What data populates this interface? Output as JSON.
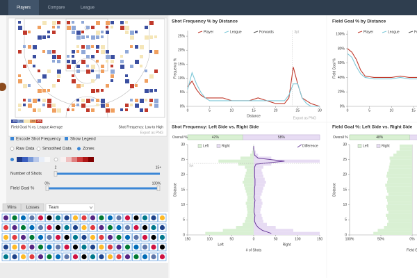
{
  "nav": {
    "tabs": [
      "Players",
      "Compare",
      "League"
    ]
  },
  "court": {
    "legend_labels": [
      "-6%",
      "-2%",
      "+2%",
      "+6%"
    ],
    "caption_left": "Field Goal % vs. League Average",
    "caption_right": "Shot Frequency: Low to High",
    "export": "Export as PNG"
  },
  "controls": {
    "checkboxes": [
      "Encode Shot Frequency",
      "Show Legend"
    ],
    "radios": [
      "Raw Data",
      "Smoothed Data",
      "Zones"
    ],
    "shots_slider": {
      "label": "Number of Shots",
      "min": 2,
      "max": "15+"
    },
    "fg_slider": {
      "label": "Field Goal %",
      "min": "0%",
      "max": "100%"
    }
  },
  "filters": {
    "tabs": [
      "Wins",
      "Losses"
    ],
    "select": "Team"
  },
  "chart_data": [
    {
      "type": "line",
      "title": "Shot Frequency % by Distance",
      "x_label": "Distance",
      "y_label": "Frequency %",
      "xlim": [
        0,
        30
      ],
      "xticks": [
        0,
        5,
        10,
        15,
        20,
        25,
        30
      ],
      "ylim": [
        0,
        27
      ],
      "yticks": [
        {
          "value": 0,
          "label": "0%"
        },
        {
          "value": 5,
          "label": "5%"
        },
        {
          "value": 10,
          "label": "10%"
        },
        {
          "value": 15,
          "label": "15%"
        },
        {
          "value": 20,
          "label": "20%"
        },
        {
          "value": 25,
          "label": "25%"
        }
      ],
      "legend": [
        {
          "name": "Player",
          "color": "#c0392b"
        },
        {
          "name": "League",
          "color": "#7ec8d8"
        },
        {
          "name": "Forwards",
          "color": "#555555"
        }
      ],
      "x": [
        0,
        1,
        2,
        3,
        4,
        5,
        6,
        8,
        10,
        12,
        14,
        16,
        18,
        20,
        22,
        23,
        24,
        25,
        26,
        27,
        28,
        30
      ],
      "series": [
        {
          "name": "Player",
          "color": "#c0392b",
          "values": [
            7,
            9,
            6,
            4,
            3,
            3,
            3,
            3,
            2,
            2,
            2,
            3,
            2,
            1,
            1,
            3,
            14,
            8,
            3,
            2,
            1,
            0
          ]
        },
        {
          "name": "League",
          "color": "#7ec8d8",
          "values": [
            6,
            12,
            8,
            5,
            3,
            2,
            2,
            2,
            2,
            2,
            2,
            2,
            2,
            2,
            2,
            4,
            8,
            8,
            3,
            1,
            0,
            0
          ]
        }
      ],
      "annotation": {
        "text": "3pt",
        "x": 23.75
      },
      "export": "Export as PNG"
    },
    {
      "type": "line",
      "title": "Field Goal % by Distance",
      "y_label": "Field Goal %",
      "xlim": [
        0,
        30
      ],
      "xticks": [
        0,
        5,
        10,
        15
      ],
      "ylim": [
        0,
        105
      ],
      "yticks": [
        {
          "value": 0,
          "label": "0%"
        },
        {
          "value": 20,
          "label": "20%"
        },
        {
          "value": 40,
          "label": "40%"
        },
        {
          "value": 60,
          "label": "60%"
        },
        {
          "value": 80,
          "label": "80%"
        },
        {
          "value": 100,
          "label": "100%"
        }
      ],
      "legend": [
        {
          "name": "Player",
          "color": "#c0392b"
        },
        {
          "name": "League",
          "color": "#7ec8d8"
        },
        {
          "name": "Forwards",
          "color": "#555555"
        }
      ],
      "x": [
        0,
        1,
        2,
        3,
        4,
        6,
        8,
        10,
        12,
        14,
        16
      ],
      "series": [
        {
          "name": "Player",
          "color": "#c0392b",
          "values": [
            80,
            75,
            65,
            50,
            42,
            40,
            40,
            40,
            42,
            40,
            40
          ]
        },
        {
          "name": "League",
          "color": "#7ec8d8",
          "values": [
            73,
            68,
            55,
            45,
            40,
            38,
            38,
            38,
            40,
            38,
            38
          ]
        }
      ]
    },
    {
      "type": "diverging_bar",
      "title": "Shot Frequency: Left Side vs. Right Side",
      "overall_label": "Overall %",
      "overall": {
        "values": [
          42,
          58
        ],
        "value_labels": [
          "42%",
          "58%"
        ]
      },
      "legend": [
        {
          "name": "Left",
          "color": "#d9f0d3"
        },
        {
          "name": "Right",
          "color": "#e7dcf3"
        },
        {
          "name": "Difference",
          "color": "#6a3d9a"
        }
      ],
      "y_label": "Distance",
      "ylim": [
        0,
        30
      ],
      "yticks": [
        0,
        5,
        10,
        15,
        20,
        25,
        30
      ],
      "left_xlim": [
        150,
        0
      ],
      "left_xticks": [
        150,
        100,
        50,
        0
      ],
      "right_xlim": [
        0,
        150
      ],
      "right_xticks": [
        50,
        100,
        150
      ],
      "side_labels": [
        "Left",
        "Right"
      ],
      "x_label": "# of Shots",
      "y": [
        0,
        1,
        2,
        3,
        4,
        5,
        6,
        7,
        8,
        9,
        10,
        11,
        12,
        13,
        14,
        15,
        16,
        17,
        18,
        19,
        20,
        21,
        22,
        23,
        24,
        25,
        26,
        27,
        28,
        29
      ],
      "left": [
        110,
        70,
        40,
        25,
        20,
        18,
        15,
        14,
        15,
        16,
        18,
        15,
        14,
        16,
        18,
        20,
        22,
        25,
        22,
        20,
        18,
        16,
        20,
        35,
        80,
        30,
        8,
        4,
        2,
        1
      ],
      "right": [
        150,
        90,
        50,
        30,
        22,
        20,
        18,
        15,
        16,
        18,
        20,
        18,
        15,
        18,
        20,
        22,
        25,
        28,
        25,
        22,
        20,
        18,
        22,
        40,
        150,
        40,
        10,
        5,
        2,
        1
      ],
      "difference": [
        40,
        20,
        10,
        5,
        2,
        2,
        3,
        1,
        1,
        2,
        2,
        3,
        1,
        2,
        2,
        2,
        3,
        3,
        3,
        2,
        2,
        2,
        2,
        5,
        70,
        10,
        2,
        1,
        0,
        0
      ],
      "annotation": {
        "text": "3pt",
        "y": 23.75
      }
    },
    {
      "type": "diverging_bar",
      "title": "Field Goal %: Left Side vs. Right Side",
      "overall_label": "Overall %",
      "overall": {
        "values": [
          48
        ],
        "value_labels": [
          "48%"
        ]
      },
      "legend": [
        {
          "name": "Left",
          "color": "#d9f0d3"
        },
        {
          "name": "Right",
          "color": "#e7dcf3"
        }
      ],
      "y_label": "Distance",
      "ylim": [
        0,
        30
      ],
      "yticks": [
        0,
        5,
        10,
        15,
        20,
        25,
        30
      ],
      "left_xlim": [
        100,
        0
      ],
      "left_xticks": [
        {
          "value": 100,
          "label": "100%"
        },
        {
          "value": 50,
          "label": "50%"
        },
        {
          "value": 0,
          "label": "0%"
        }
      ],
      "x_label": "Field Goal %",
      "y": [
        0,
        1,
        2,
        3,
        4,
        5,
        6,
        7,
        8,
        9,
        10,
        11,
        12,
        13,
        14,
        15,
        16,
        17,
        18,
        19,
        20,
        21,
        22,
        23,
        24,
        25,
        26,
        27,
        28,
        29
      ],
      "left": [
        62,
        55,
        45,
        40,
        38,
        40,
        42,
        38,
        40,
        41,
        39,
        40,
        42,
        38,
        40,
        41,
        43,
        40,
        39,
        41,
        40,
        38,
        37,
        36,
        35,
        36,
        30,
        25,
        20,
        20
      ]
    }
  ]
}
